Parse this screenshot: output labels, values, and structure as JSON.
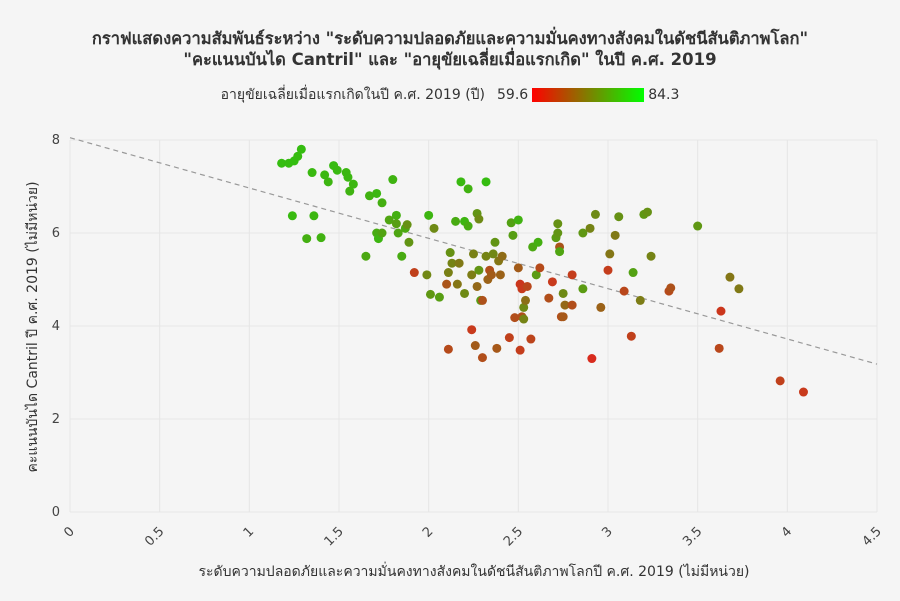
{
  "chart_data": {
    "type": "scatter",
    "title": "กราฟแสดงความสัมพันธ์ระหว่าง \"ระดับความปลอดภัยและความมั่นคงทางสังคมในดัชนีสันติภาพโลก\"",
    "subtitle": "\"คะแนนบันได Cantril\" และ \"อายุขัยเฉลี่ยเมื่อแรกเกิด\" ในปี ค.ศ. 2019",
    "xlabel": "ระดับความปลอดภัยและความมั่นคงทางสังคมในดัชนีสันติภาพโลกปี ค.ศ. 2019 (ไม่มีหน่วย)",
    "ylabel": "คะแนนบันได Cantril ปี ค.ศ. 2019 (ไม่มีหน่วย)",
    "xlim": [
      0,
      4.5
    ],
    "ylim": [
      0,
      8
    ],
    "x_ticks": [
      "0",
      "0.5",
      "1",
      "1.5",
      "2",
      "2.5",
      "3",
      "3.5",
      "4",
      "4.5"
    ],
    "y_ticks": [
      "0",
      "2",
      "4",
      "6",
      "8"
    ],
    "grid": true,
    "colorbar": {
      "label": "อายุขัยเฉลี่ยเมื่อแรกเกิดในปี ค.ศ. 2019 (ปี)",
      "min": 59.6,
      "max": 84.3,
      "min_label": "59.6",
      "max_label": "84.3",
      "colors": [
        "#ff0000",
        "#00ff00"
      ]
    },
    "trendline": {
      "x": [
        0,
        4.5
      ],
      "y": [
        8.05,
        3.18
      ],
      "color": "#999999",
      "style": "dashed"
    },
    "points": [
      [
        1.18,
        7.5,
        82.6
      ],
      [
        1.22,
        7.5,
        82.5
      ],
      [
        1.25,
        7.55,
        82.8
      ],
      [
        1.27,
        7.65,
        82.4
      ],
      [
        1.29,
        7.8,
        82.5
      ],
      [
        1.35,
        7.3,
        82.0
      ],
      [
        1.42,
        7.25,
        81.8
      ],
      [
        1.44,
        7.1,
        81.5
      ],
      [
        1.47,
        7.45,
        82.3
      ],
      [
        1.49,
        7.35,
        82.0
      ],
      [
        1.54,
        7.3,
        81.6
      ],
      [
        1.55,
        7.2,
        81.8
      ],
      [
        1.56,
        6.9,
        81.2
      ],
      [
        1.58,
        7.05,
        81.6
      ],
      [
        1.67,
        6.8,
        81.0
      ],
      [
        1.71,
        6.85,
        81.6
      ],
      [
        1.74,
        6.65,
        80.5
      ],
      [
        1.8,
        7.15,
        81.2
      ],
      [
        1.24,
        6.37,
        82.2
      ],
      [
        1.36,
        6.37,
        81.6
      ],
      [
        1.32,
        5.88,
        80.5
      ],
      [
        1.4,
        5.9,
        81.0
      ],
      [
        1.65,
        5.5,
        79.5
      ],
      [
        1.71,
        6.0,
        80.0
      ],
      [
        1.72,
        5.88,
        81.5
      ],
      [
        1.74,
        6.0,
        78.8
      ],
      [
        1.78,
        6.28,
        79.0
      ],
      [
        1.82,
        6.38,
        80.5
      ],
      [
        1.82,
        6.2,
        78.0
      ],
      [
        1.83,
        6.0,
        79.2
      ],
      [
        1.85,
        5.5,
        80.0
      ],
      [
        1.87,
        6.1,
        79.5
      ],
      [
        1.88,
        6.18,
        76.0
      ],
      [
        1.89,
        5.8,
        76.5
      ],
      [
        1.92,
        5.15,
        64.0
      ],
      [
        1.99,
        5.1,
        74.5
      ],
      [
        2.0,
        6.38,
        81.5
      ],
      [
        2.01,
        4.68,
        77.0
      ],
      [
        2.03,
        6.1,
        75.0
      ],
      [
        2.06,
        4.62,
        78.0
      ],
      [
        2.1,
        4.9,
        67.0
      ],
      [
        2.11,
        3.5,
        65.5
      ],
      [
        2.11,
        5.15,
        73.5
      ],
      [
        2.12,
        5.58,
        76.0
      ],
      [
        2.13,
        5.35,
        74.0
      ],
      [
        2.15,
        6.25,
        80.0
      ],
      [
        2.16,
        4.9,
        72.0
      ],
      [
        2.17,
        5.35,
        72.5
      ],
      [
        2.18,
        7.1,
        82.0
      ],
      [
        2.2,
        6.25,
        81.5
      ],
      [
        2.2,
        4.7,
        75.0
      ],
      [
        2.22,
        6.95,
        81.0
      ],
      [
        2.22,
        6.15,
        80.0
      ],
      [
        2.24,
        5.1,
        73.0
      ],
      [
        2.24,
        3.92,
        63.0
      ],
      [
        2.25,
        5.55,
        73.5
      ],
      [
        2.26,
        3.58,
        68.0
      ],
      [
        2.27,
        4.85,
        70.0
      ],
      [
        2.27,
        6.42,
        76.5
      ],
      [
        2.28,
        6.3,
        75.0
      ],
      [
        2.28,
        5.2,
        76.5
      ],
      [
        2.29,
        4.55,
        78.0
      ],
      [
        2.3,
        3.32,
        66.0
      ],
      [
        2.3,
        4.55,
        66.5
      ],
      [
        2.32,
        5.5,
        74.0
      ],
      [
        2.32,
        7.1,
        82.5
      ],
      [
        2.33,
        5.0,
        69.0
      ],
      [
        2.34,
        5.2,
        66.0
      ],
      [
        2.35,
        5.1,
        68.0
      ],
      [
        2.36,
        5.55,
        74.5
      ],
      [
        2.37,
        5.8,
        76.5
      ],
      [
        2.38,
        3.52,
        67.5
      ],
      [
        2.39,
        5.4,
        72.0
      ],
      [
        2.4,
        5.1,
        69.0
      ],
      [
        2.41,
        5.5,
        70.5
      ],
      [
        2.45,
        3.75,
        64.0
      ],
      [
        2.46,
        6.22,
        78.5
      ],
      [
        2.47,
        5.95,
        78.0
      ],
      [
        2.48,
        4.18,
        66.0
      ],
      [
        2.5,
        6.28,
        81.0
      ],
      [
        2.5,
        5.25,
        68.0
      ],
      [
        2.51,
        3.48,
        63.5
      ],
      [
        2.51,
        4.9,
        62.5
      ],
      [
        2.52,
        4.8,
        63.0
      ],
      [
        2.52,
        4.2,
        66.0
      ],
      [
        2.53,
        4.4,
        75.0
      ],
      [
        2.53,
        4.15,
        74.0
      ],
      [
        2.54,
        4.55,
        71.0
      ],
      [
        2.55,
        4.85,
        65.0
      ],
      [
        2.57,
        3.72,
        64.5
      ],
      [
        2.58,
        5.7,
        79.5
      ],
      [
        2.6,
        5.1,
        77.5
      ],
      [
        2.61,
        5.8,
        80.5
      ],
      [
        2.62,
        5.25,
        65.5
      ],
      [
        2.67,
        4.6,
        66.0
      ],
      [
        2.69,
        4.95,
        63.0
      ],
      [
        2.71,
        5.9,
        77.5
      ],
      [
        2.72,
        6.2,
        76.0
      ],
      [
        2.72,
        6.0,
        76.5
      ],
      [
        2.73,
        5.7,
        67.0
      ],
      [
        2.73,
        5.6,
        79.0
      ],
      [
        2.74,
        4.2,
        66.0
      ],
      [
        2.75,
        4.2,
        67.5
      ],
      [
        2.75,
        4.7,
        75.0
      ],
      [
        2.76,
        4.45,
        70.0
      ],
      [
        2.8,
        4.45,
        66.0
      ],
      [
        2.8,
        5.1,
        63.5
      ],
      [
        2.86,
        4.8,
        77.5
      ],
      [
        2.86,
        6.0,
        77.0
      ],
      [
        2.9,
        6.1,
        74.0
      ],
      [
        2.91,
        3.3,
        60.8
      ],
      [
        2.93,
        6.4,
        75.0
      ],
      [
        2.96,
        4.4,
        69.0
      ],
      [
        3.0,
        5.2,
        63.5
      ],
      [
        3.01,
        5.55,
        72.0
      ],
      [
        3.04,
        5.95,
        72.5
      ],
      [
        3.06,
        6.35,
        76.0
      ],
      [
        3.09,
        4.75,
        65.0
      ],
      [
        3.13,
        3.78,
        64.0
      ],
      [
        3.14,
        5.15,
        78.5
      ],
      [
        3.18,
        4.55,
        73.0
      ],
      [
        3.2,
        6.4,
        77.0
      ],
      [
        3.22,
        6.45,
        76.0
      ],
      [
        3.24,
        5.5,
        74.0
      ],
      [
        3.34,
        4.75,
        65.5
      ],
      [
        3.35,
        4.82,
        66.5
      ],
      [
        3.5,
        6.15,
        77.0
      ],
      [
        3.62,
        3.52,
        65.0
      ],
      [
        3.63,
        4.32,
        62.5
      ],
      [
        3.68,
        5.05,
        72.0
      ],
      [
        3.73,
        4.8,
        72.5
      ],
      [
        3.96,
        2.82,
        64.0
      ],
      [
        4.09,
        2.58,
        63.0
      ]
    ]
  }
}
